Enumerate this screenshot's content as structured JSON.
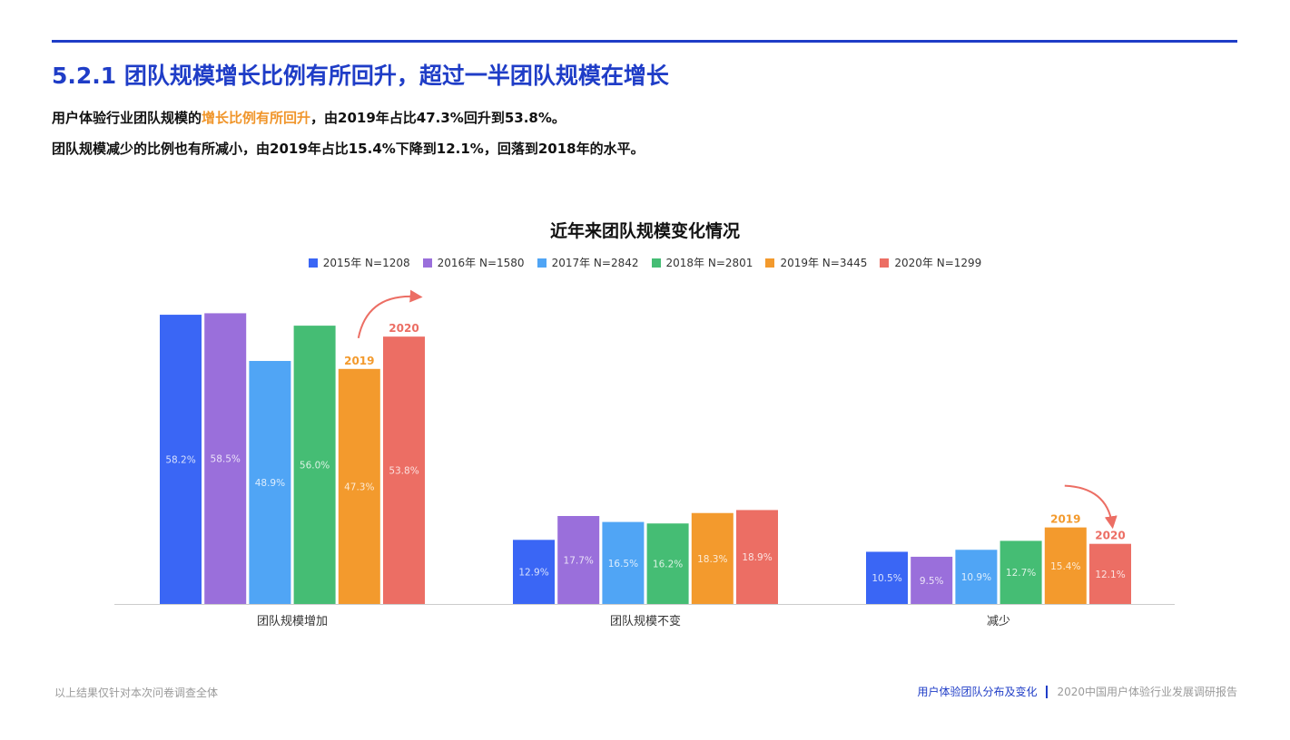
{
  "header": {
    "title": "5.2.1 团队规模增长比例有所回升，超过一半团队规模在增长",
    "line1": {
      "pre": "用户体验行业团队规模的",
      "highlight": "增长比例有所回升",
      "post": "，由2019年占比47.3%回升到53.8%。"
    },
    "line2": "团队规模减少的比例也有所减小，由2019年占比15.4%下降到12.1%，回落到2018年的水平。"
  },
  "chart_data": {
    "type": "bar",
    "title": "近年来团队规模变化情况",
    "categories": [
      "团队规模增加",
      "团队规模不变",
      "减少"
    ],
    "series": [
      {
        "name": "2015年 N=1208",
        "color": "#3a66f5",
        "values": [
          58.2,
          12.9,
          10.5
        ]
      },
      {
        "name": "2016年 N=1580",
        "color": "#9a6fdb",
        "values": [
          58.5,
          17.7,
          9.5
        ]
      },
      {
        "name": "2017年 N=2842",
        "color": "#50a5f5",
        "values": [
          48.9,
          16.5,
          10.9
        ]
      },
      {
        "name": "2018年 N=2801",
        "color": "#45bd74",
        "values": [
          56.0,
          16.2,
          12.7
        ]
      },
      {
        "name": "2019年 N=3445",
        "color": "#f39a2d",
        "values": [
          47.3,
          18.3,
          15.4
        ]
      },
      {
        "name": "2020年 N=1299",
        "color": "#ec6e64",
        "values": [
          53.8,
          18.9,
          12.1
        ]
      }
    ],
    "value_suffix": "%",
    "ylim": [
      0,
      60
    ],
    "legend_position": "top-center",
    "grid": false,
    "annotations": [
      {
        "category": 0,
        "series": 4,
        "text": "2019",
        "color": "#f39a2d"
      },
      {
        "category": 0,
        "series": 5,
        "text": "2020",
        "color": "#ec6e64"
      },
      {
        "category": 2,
        "series": 4,
        "text": "2019",
        "color": "#f39a2d"
      },
      {
        "category": 2,
        "series": 5,
        "text": "2020",
        "color": "#ec6e64"
      }
    ],
    "trend_arrows": [
      {
        "category": 0,
        "direction": "up",
        "color": "#ec6e64"
      },
      {
        "category": 2,
        "direction": "down",
        "color": "#ec6e64"
      }
    ]
  },
  "footer": {
    "note": "以上结果仅针对本次问卷调查全体",
    "section": "用户体验团队分布及变化",
    "report": "2020中国用户体验行业发展调研报告"
  }
}
